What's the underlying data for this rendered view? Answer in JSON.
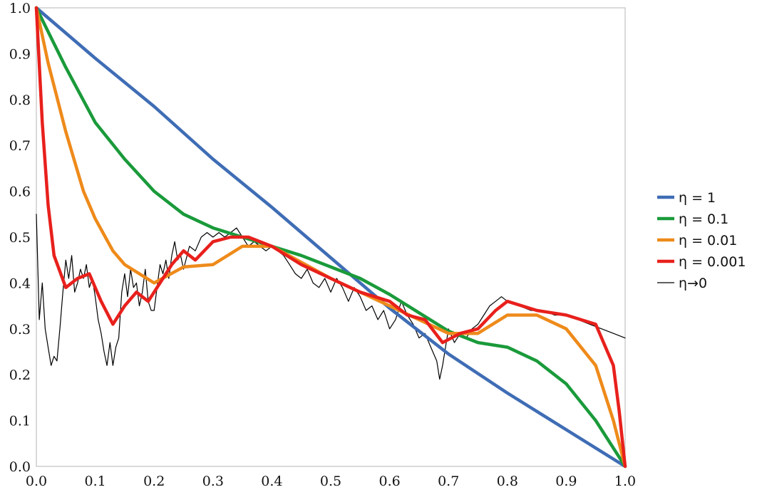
{
  "chart_data": {
    "type": "line",
    "title": "",
    "xlabel": "",
    "ylabel": "",
    "xlim": [
      0,
      1
    ],
    "ylim": [
      0,
      1
    ],
    "x_ticks": [
      "0.0",
      "0.1",
      "0.2",
      "0.3",
      "0.4",
      "0.5",
      "0.6",
      "0.7",
      "0.8",
      "0.9",
      "1.0"
    ],
    "y_ticks": [
      "0.0",
      "0.1",
      "0.2",
      "0.3",
      "0.4",
      "0.5",
      "0.6",
      "0.7",
      "0.8",
      "0.9",
      "1.0"
    ],
    "grid": false,
    "legend_position": "right",
    "series": [
      {
        "name": "η = 1",
        "color": "#3f6db5",
        "x": [
          0.0,
          0.1,
          0.2,
          0.3,
          0.4,
          0.5,
          0.6,
          0.7,
          0.8,
          0.9,
          1.0
        ],
        "y": [
          1.0,
          0.89,
          0.785,
          0.67,
          0.565,
          0.455,
          0.345,
          0.245,
          0.16,
          0.08,
          0.0
        ]
      },
      {
        "name": "η = 0.1",
        "color": "#1a9a3a",
        "x": [
          0.0,
          0.05,
          0.1,
          0.15,
          0.2,
          0.25,
          0.3,
          0.35,
          0.4,
          0.45,
          0.5,
          0.55,
          0.6,
          0.65,
          0.7,
          0.75,
          0.8,
          0.85,
          0.9,
          0.95,
          1.0
        ],
        "y": [
          1.0,
          0.87,
          0.75,
          0.67,
          0.6,
          0.55,
          0.52,
          0.5,
          0.48,
          0.46,
          0.435,
          0.41,
          0.375,
          0.335,
          0.295,
          0.27,
          0.26,
          0.23,
          0.18,
          0.1,
          0.0
        ]
      },
      {
        "name": "η = 0.01",
        "color": "#ee8a1a",
        "x": [
          0.0,
          0.02,
          0.05,
          0.08,
          0.1,
          0.13,
          0.15,
          0.2,
          0.25,
          0.3,
          0.35,
          0.4,
          0.45,
          0.5,
          0.55,
          0.6,
          0.65,
          0.7,
          0.75,
          0.8,
          0.85,
          0.9,
          0.95,
          0.98,
          1.0
        ],
        "y": [
          1.0,
          0.88,
          0.73,
          0.6,
          0.54,
          0.47,
          0.44,
          0.4,
          0.435,
          0.44,
          0.48,
          0.48,
          0.445,
          0.41,
          0.38,
          0.35,
          0.32,
          0.29,
          0.29,
          0.33,
          0.33,
          0.3,
          0.22,
          0.1,
          0.0
        ]
      },
      {
        "name": "η = 0.001",
        "color": "#e8201c",
        "x": [
          0.0,
          0.01,
          0.02,
          0.03,
          0.05,
          0.07,
          0.09,
          0.11,
          0.13,
          0.15,
          0.17,
          0.19,
          0.21,
          0.23,
          0.25,
          0.27,
          0.3,
          0.33,
          0.36,
          0.4,
          0.45,
          0.5,
          0.55,
          0.6,
          0.63,
          0.66,
          0.69,
          0.72,
          0.75,
          0.78,
          0.8,
          0.85,
          0.9,
          0.95,
          0.98,
          0.99,
          1.0
        ],
        "y": [
          1.0,
          0.75,
          0.57,
          0.46,
          0.39,
          0.41,
          0.42,
          0.36,
          0.31,
          0.35,
          0.38,
          0.36,
          0.4,
          0.44,
          0.47,
          0.45,
          0.49,
          0.5,
          0.5,
          0.48,
          0.44,
          0.41,
          0.38,
          0.36,
          0.33,
          0.32,
          0.27,
          0.29,
          0.3,
          0.34,
          0.36,
          0.34,
          0.33,
          0.31,
          0.22,
          0.12,
          0.0
        ]
      },
      {
        "name": "η→0",
        "color": "#000000",
        "x": [
          0.0,
          0.005,
          0.01,
          0.015,
          0.02,
          0.025,
          0.03,
          0.035,
          0.04,
          0.045,
          0.05,
          0.055,
          0.06,
          0.065,
          0.07,
          0.075,
          0.08,
          0.085,
          0.09,
          0.095,
          0.1,
          0.105,
          0.11,
          0.115,
          0.12,
          0.125,
          0.13,
          0.135,
          0.14,
          0.145,
          0.15,
          0.155,
          0.16,
          0.165,
          0.17,
          0.175,
          0.18,
          0.185,
          0.19,
          0.195,
          0.2,
          0.205,
          0.21,
          0.215,
          0.22,
          0.225,
          0.23,
          0.235,
          0.24,
          0.245,
          0.25,
          0.26,
          0.27,
          0.28,
          0.29,
          0.3,
          0.31,
          0.32,
          0.33,
          0.34,
          0.35,
          0.36,
          0.37,
          0.38,
          0.39,
          0.4,
          0.41,
          0.42,
          0.43,
          0.44,
          0.45,
          0.46,
          0.47,
          0.48,
          0.49,
          0.5,
          0.51,
          0.52,
          0.53,
          0.54,
          0.55,
          0.56,
          0.57,
          0.58,
          0.59,
          0.6,
          0.61,
          0.62,
          0.63,
          0.64,
          0.65,
          0.66,
          0.67,
          0.68,
          0.685,
          0.69,
          0.7,
          0.71,
          0.72,
          0.73,
          0.74,
          0.75,
          0.76,
          0.77,
          0.78,
          0.79,
          0.8,
          0.82,
          0.84,
          0.86,
          0.88,
          0.9,
          0.92,
          0.94,
          0.96,
          0.98,
          1.0
        ],
        "y": [
          0.55,
          0.32,
          0.4,
          0.3,
          0.26,
          0.22,
          0.24,
          0.23,
          0.3,
          0.38,
          0.45,
          0.41,
          0.46,
          0.38,
          0.4,
          0.43,
          0.41,
          0.44,
          0.39,
          0.41,
          0.37,
          0.32,
          0.29,
          0.25,
          0.22,
          0.27,
          0.22,
          0.26,
          0.28,
          0.38,
          0.42,
          0.37,
          0.43,
          0.39,
          0.4,
          0.35,
          0.38,
          0.43,
          0.36,
          0.34,
          0.34,
          0.39,
          0.44,
          0.42,
          0.45,
          0.41,
          0.46,
          0.49,
          0.45,
          0.46,
          0.43,
          0.48,
          0.47,
          0.5,
          0.51,
          0.5,
          0.51,
          0.5,
          0.51,
          0.52,
          0.5,
          0.48,
          0.49,
          0.48,
          0.47,
          0.48,
          0.47,
          0.46,
          0.44,
          0.42,
          0.41,
          0.43,
          0.4,
          0.39,
          0.41,
          0.38,
          0.41,
          0.39,
          0.36,
          0.39,
          0.37,
          0.34,
          0.35,
          0.32,
          0.34,
          0.3,
          0.32,
          0.36,
          0.33,
          0.31,
          0.28,
          0.29,
          0.26,
          0.23,
          0.19,
          0.22,
          0.3,
          0.27,
          0.29,
          0.28,
          0.3,
          0.31,
          0.33,
          0.35,
          0.36,
          0.37,
          0.36,
          0.35,
          0.34,
          0.34,
          0.33,
          0.33,
          0.32,
          0.31,
          0.3,
          0.29,
          0.28
        ]
      }
    ]
  }
}
